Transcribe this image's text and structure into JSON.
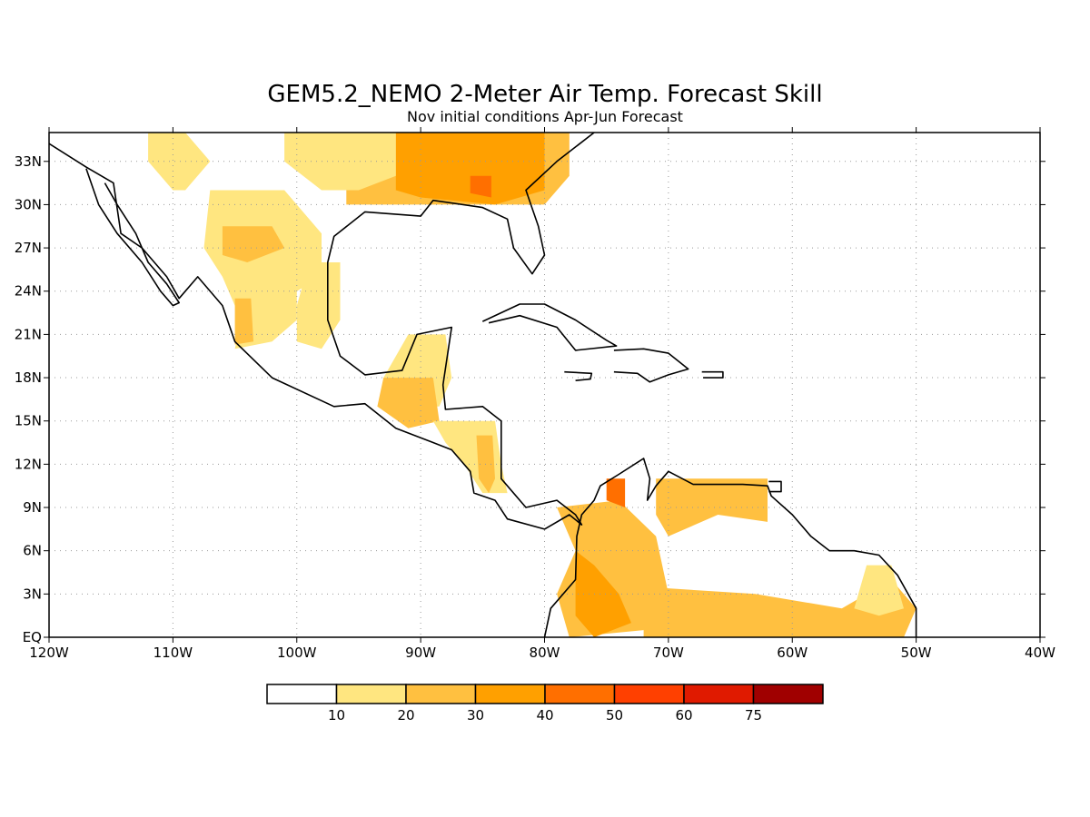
{
  "map": {
    "title": "GEM5.2_NEMO 2-Meter Air Temp. Forecast Skill",
    "subtitle": "Nov initial conditions  Apr-Jun Forecast",
    "extent": {
      "lon_min": -120,
      "lon_max": -40,
      "lat_min": 0,
      "lat_max": 35
    },
    "lon_ticks": [
      {
        "lon": -120,
        "label": "120W"
      },
      {
        "lon": -110,
        "label": "110W"
      },
      {
        "lon": -100,
        "label": "100W"
      },
      {
        "lon": -90,
        "label": "90W"
      },
      {
        "lon": -80,
        "label": "80W"
      },
      {
        "lon": -70,
        "label": "70W"
      },
      {
        "lon": -60,
        "label": "60W"
      },
      {
        "lon": -50,
        "label": "50W"
      },
      {
        "lon": -40,
        "label": "40W"
      }
    ],
    "lat_ticks": [
      {
        "lat": 0,
        "label": "EQ"
      },
      {
        "lat": 3,
        "label": "3N"
      },
      {
        "lat": 6,
        "label": "6N"
      },
      {
        "lat": 9,
        "label": "9N"
      },
      {
        "lat": 12,
        "label": "12N"
      },
      {
        "lat": 15,
        "label": "15N"
      },
      {
        "lat": 18,
        "label": "18N"
      },
      {
        "lat": 21,
        "label": "21N"
      },
      {
        "lat": 24,
        "label": "24N"
      },
      {
        "lat": 27,
        "label": "27N"
      },
      {
        "lat": 30,
        "label": "30N"
      },
      {
        "lat": 33,
        "label": "33N"
      }
    ],
    "grid": true
  },
  "colorbar": {
    "colors": [
      "#ffffff",
      "#ffe680",
      "#ffc040",
      "#ffa000",
      "#ff6f00",
      "#ff4000",
      "#e01a00",
      "#a00000"
    ],
    "labels": [
      "10",
      "20",
      "30",
      "40",
      "50",
      "60",
      "75"
    ]
  },
  "skill_regions": [
    {
      "name": "southeast-us",
      "level": 2,
      "coords": [
        [
          -96,
          35
        ],
        [
          -78,
          35
        ],
        [
          -78,
          32
        ],
        [
          -80,
          30
        ],
        [
          -84,
          30
        ],
        [
          -88,
          30
        ],
        [
          -93,
          30
        ],
        [
          -96,
          30
        ]
      ]
    },
    {
      "name": "southeast-us-core",
      "level": 3,
      "coords": [
        [
          -92,
          35
        ],
        [
          -80,
          35
        ],
        [
          -80,
          31
        ],
        [
          -84,
          30
        ],
        [
          -90,
          30.5
        ],
        [
          -92,
          31
        ]
      ]
    },
    {
      "name": "georgia-hotspot",
      "level": 4,
      "coords": [
        [
          -86,
          32
        ],
        [
          -84.3,
          32
        ],
        [
          -84.3,
          30.5
        ],
        [
          -86,
          30.8
        ]
      ]
    },
    {
      "name": "texas-north",
      "level": 1,
      "coords": [
        [
          -101,
          35
        ],
        [
          -92,
          35
        ],
        [
          -92,
          32
        ],
        [
          -95,
          31
        ],
        [
          -98,
          31
        ],
        [
          -101,
          33
        ]
      ]
    },
    {
      "name": "nw-mexico-strip",
      "level": 1,
      "coords": [
        [
          -112,
          35
        ],
        [
          -109,
          35
        ],
        [
          -107,
          33
        ],
        [
          -109,
          31
        ],
        [
          -110,
          31
        ],
        [
          -112,
          33
        ]
      ]
    },
    {
      "name": "north-mexico",
      "level": 1,
      "coords": [
        [
          -107,
          31
        ],
        [
          -101,
          31
        ],
        [
          -98,
          28
        ],
        [
          -98,
          25
        ],
        [
          -100,
          24
        ],
        [
          -100,
          22
        ],
        [
          -102,
          20.5
        ],
        [
          -105,
          20
        ],
        [
          -104.5,
          22
        ],
        [
          -106,
          25
        ],
        [
          -107.5,
          27
        ]
      ]
    },
    {
      "name": "north-mexico-core",
      "level": 2,
      "coords": [
        [
          -106,
          28.5
        ],
        [
          -102,
          28.5
        ],
        [
          -101,
          27
        ],
        [
          -104,
          26
        ],
        [
          -106,
          26.5
        ]
      ]
    },
    {
      "name": "western-mexico",
      "level": 2,
      "coords": [
        [
          -105,
          23.5
        ],
        [
          -103.7,
          23.5
        ],
        [
          -103.5,
          20.5
        ],
        [
          -105,
          20.3
        ]
      ]
    },
    {
      "name": "east-mexico",
      "level": 1,
      "coords": [
        [
          -99,
          26
        ],
        [
          -96.5,
          26
        ],
        [
          -96.5,
          22
        ],
        [
          -98,
          20
        ],
        [
          -100,
          20.5
        ],
        [
          -100,
          23
        ]
      ]
    },
    {
      "name": "yucatan",
      "level": 1,
      "coords": [
        [
          -91,
          21
        ],
        [
          -88,
          21
        ],
        [
          -87.5,
          18
        ],
        [
          -88.5,
          16
        ],
        [
          -91,
          16
        ],
        [
          -93,
          18
        ]
      ]
    },
    {
      "name": "guatemala",
      "level": 2,
      "coords": [
        [
          -93,
          18
        ],
        [
          -89,
          18
        ],
        [
          -88.5,
          15
        ],
        [
          -91,
          14.5
        ],
        [
          -93.5,
          16
        ]
      ]
    },
    {
      "name": "central-america",
      "level": 1,
      "coords": [
        [
          -89,
          15
        ],
        [
          -84,
          15
        ],
        [
          -83.5,
          12
        ],
        [
          -83,
          10
        ],
        [
          -85,
          10
        ],
        [
          -86.5,
          12
        ],
        [
          -88,
          13.5
        ]
      ]
    },
    {
      "name": "nicaragua-core",
      "level": 2,
      "coords": [
        [
          -85.5,
          14
        ],
        [
          -84.2,
          14
        ],
        [
          -84,
          11
        ],
        [
          -84.5,
          10
        ],
        [
          -85.3,
          11
        ]
      ]
    },
    {
      "name": "colombia",
      "level": 2,
      "coords": [
        [
          -79,
          9
        ],
        [
          -74,
          9.5
        ],
        [
          -71,
          7
        ],
        [
          -70,
          3
        ],
        [
          -72,
          0.5
        ],
        [
          -78,
          0
        ],
        [
          -79,
          3
        ],
        [
          -77.5,
          6
        ]
      ]
    },
    {
      "name": "colombia-core",
      "level": 3,
      "coords": [
        [
          -77.5,
          6
        ],
        [
          -76,
          5
        ],
        [
          -74,
          3
        ],
        [
          -73,
          1
        ],
        [
          -76,
          0
        ],
        [
          -77.5,
          1.5
        ],
        [
          -77.5,
          3.5
        ]
      ]
    },
    {
      "name": "colombia-north-hot",
      "level": 4,
      "coords": [
        [
          -75,
          11
        ],
        [
          -73.5,
          11
        ],
        [
          -73.5,
          9
        ],
        [
          -75,
          9.5
        ]
      ]
    },
    {
      "name": "venezuela-north",
      "level": 2,
      "coords": [
        [
          -71,
          11
        ],
        [
          -62,
          11
        ],
        [
          -62,
          8
        ],
        [
          -66,
          8.5
        ],
        [
          -70,
          7
        ],
        [
          -71,
          8.5
        ]
      ]
    },
    {
      "name": "amazon-north",
      "level": 2,
      "coords": [
        [
          -72,
          3.5
        ],
        [
          -63,
          3
        ],
        [
          -56,
          2
        ],
        [
          -52,
          4
        ],
        [
          -50,
          2
        ],
        [
          -51,
          0
        ],
        [
          -72,
          0
        ]
      ]
    },
    {
      "name": "guiana-east",
      "level": 1,
      "coords": [
        [
          -54,
          5
        ],
        [
          -52,
          5
        ],
        [
          -51,
          2
        ],
        [
          -53,
          1.5
        ],
        [
          -55,
          2
        ]
      ]
    }
  ],
  "land_outlines": [
    {
      "name": "north-america",
      "coords": [
        [
          -120,
          35
        ],
        [
          -120.5,
          34.5
        ],
        [
          -117,
          32.6
        ],
        [
          -114.8,
          31.5
        ],
        [
          -114.2,
          28
        ],
        [
          -112.5,
          27
        ],
        [
          -110.5,
          25
        ],
        [
          -109.5,
          23.5
        ],
        [
          -108,
          25
        ],
        [
          -106,
          23
        ],
        [
          -105,
          20.5
        ],
        [
          -102,
          18
        ],
        [
          -97,
          16
        ],
        [
          -94.5,
          16.2
        ],
        [
          -92,
          14.5
        ],
        [
          -89,
          13.5
        ],
        [
          -87.5,
          13
        ],
        [
          -86,
          11.5
        ],
        [
          -85.7,
          10
        ],
        [
          -84,
          9.5
        ],
        [
          -83,
          8.2
        ],
        [
          -80,
          7.5
        ],
        [
          -78,
          8.5
        ],
        [
          -77,
          7.8
        ],
        [
          -77.5,
          8.5
        ],
        [
          -79,
          9.5
        ],
        [
          -81.5,
          9
        ],
        [
          -83.5,
          11
        ],
        [
          -83.5,
          15
        ],
        [
          -85,
          16
        ],
        [
          -88,
          15.8
        ],
        [
          -88.2,
          17.5
        ],
        [
          -87.5,
          21.5
        ],
        [
          -90.3,
          21
        ],
        [
          -91.5,
          18.5
        ],
        [
          -94.5,
          18.2
        ],
        [
          -96.5,
          19.5
        ],
        [
          -97.5,
          22
        ],
        [
          -97.5,
          26
        ],
        [
          -97,
          27.8
        ],
        [
          -94.5,
          29.5
        ],
        [
          -90,
          29.2
        ],
        [
          -89,
          30.3
        ],
        [
          -85,
          29.8
        ],
        [
          -83,
          29
        ],
        [
          -82.5,
          27
        ],
        [
          -81,
          25.2
        ],
        [
          -80,
          26.5
        ],
        [
          -80.5,
          28.5
        ],
        [
          -81.5,
          31
        ],
        [
          -79,
          33
        ],
        [
          -76,
          35
        ]
      ]
    },
    {
      "name": "baja-california",
      "coords": [
        [
          -117,
          32.5
        ],
        [
          -116,
          30
        ],
        [
          -114.5,
          28
        ],
        [
          -112.5,
          26
        ],
        [
          -111,
          24
        ],
        [
          -110,
          23
        ],
        [
          -109.5,
          23.2
        ],
        [
          -110.5,
          24.5
        ],
        [
          -112,
          26
        ],
        [
          -113,
          28
        ],
        [
          -114.5,
          30
        ],
        [
          -115.5,
          31.5
        ]
      ]
    },
    {
      "name": "cuba",
      "coords": [
        [
          -85,
          21.9
        ],
        [
          -82,
          23.1
        ],
        [
          -80,
          23.1
        ],
        [
          -77.5,
          22
        ],
        [
          -75,
          20.6
        ],
        [
          -74.2,
          20.2
        ],
        [
          -77.5,
          19.9
        ],
        [
          -79,
          21.5
        ],
        [
          -82,
          22.3
        ],
        [
          -84.5,
          21.8
        ]
      ]
    },
    {
      "name": "hispaniola",
      "coords": [
        [
          -74.4,
          19.9
        ],
        [
          -72,
          20
        ],
        [
          -70,
          19.7
        ],
        [
          -68.4,
          18.6
        ],
        [
          -70,
          18.2
        ],
        [
          -71.5,
          17.7
        ],
        [
          -72.5,
          18.3
        ],
        [
          -74.4,
          18.4
        ]
      ]
    },
    {
      "name": "jamaica",
      "coords": [
        [
          -78.4,
          18.4
        ],
        [
          -76.2,
          18.3
        ],
        [
          -76.3,
          17.9
        ],
        [
          -77.5,
          17.8
        ]
      ]
    },
    {
      "name": "puerto-rico",
      "coords": [
        [
          -67.3,
          18.4
        ],
        [
          -65.6,
          18.4
        ],
        [
          -65.6,
          18
        ],
        [
          -67.2,
          18
        ]
      ]
    },
    {
      "name": "south-america",
      "coords": [
        [
          -80,
          0
        ],
        [
          -79.5,
          2
        ],
        [
          -77.5,
          4
        ],
        [
          -77.4,
          7
        ],
        [
          -77,
          8.5
        ],
        [
          -76,
          9.5
        ],
        [
          -75.5,
          10.5
        ],
        [
          -74,
          11.3
        ],
        [
          -72,
          12.4
        ],
        [
          -71.5,
          11
        ],
        [
          -71.7,
          9.5
        ],
        [
          -71,
          10.5
        ],
        [
          -70,
          11.5
        ],
        [
          -68,
          10.6
        ],
        [
          -64,
          10.6
        ],
        [
          -62,
          10.5
        ],
        [
          -61.7,
          9.8
        ],
        [
          -60,
          8.5
        ],
        [
          -58.5,
          7
        ],
        [
          -57,
          6
        ],
        [
          -55,
          6
        ],
        [
          -53,
          5.7
        ],
        [
          -51.5,
          4.3
        ],
        [
          -50,
          2
        ],
        [
          -50,
          0
        ]
      ]
    },
    {
      "name": "trinidad",
      "coords": [
        [
          -61.9,
          10.8
        ],
        [
          -60.9,
          10.8
        ],
        [
          -60.9,
          10.1
        ],
        [
          -61.9,
          10.1
        ]
      ]
    }
  ]
}
